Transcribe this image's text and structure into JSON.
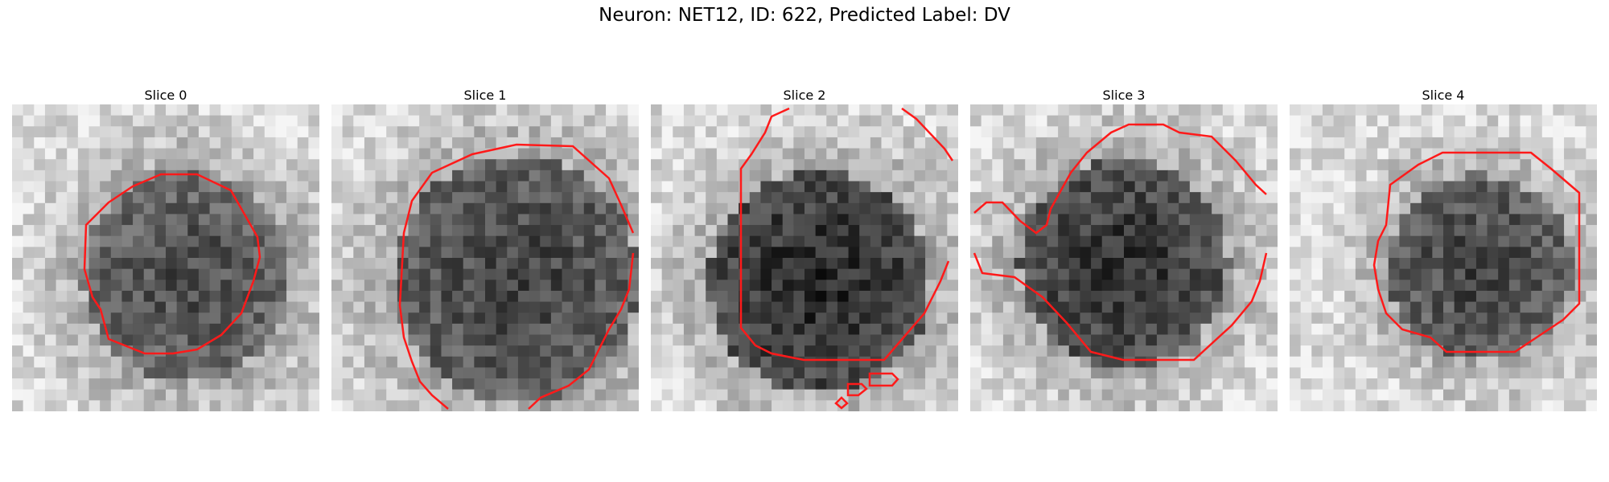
{
  "figure": {
    "title": "Neuron: NET12, ID: 622, Predicted Label: DV"
  },
  "panels": [
    {
      "title": "Slice 0"
    },
    {
      "title": "Slice 1"
    },
    {
      "title": "Slice 2"
    },
    {
      "title": "Slice 3"
    },
    {
      "title": "Slice 4"
    }
  ],
  "colors": {
    "contour": "#ff1a1a",
    "background": "#ffffff"
  },
  "image_style": "grayscale microscopy crop with red segmentation contour"
}
